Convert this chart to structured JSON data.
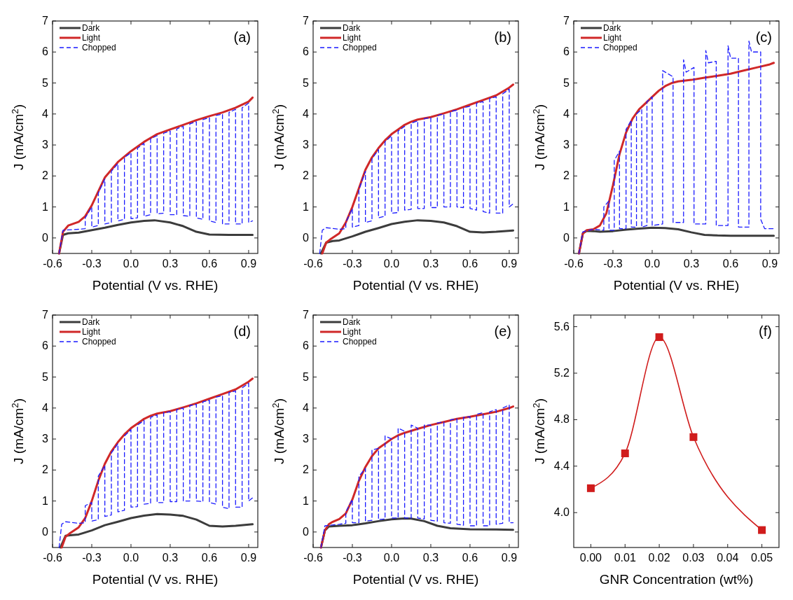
{
  "chart_data": [
    {
      "type": "line",
      "title": "(a)",
      "xlabel": "Potential (V vs. RHE)",
      "ylabel": "J (mA/cm$^{2}$)",
      "legend": "top left",
      "xlim": [
        -0.6,
        0.97
      ],
      "ylim": [
        -0.5,
        7
      ],
      "xticks": [
        -0.6,
        -0.3,
        {
          "value": 0,
          "label": "0.0"
        },
        0.3,
        0.6,
        0.9
      ],
      "yticks": [
        0,
        1,
        2,
        3,
        4,
        5,
        6,
        7
      ],
      "series": [
        {
          "name": "Dark",
          "color": "#3c3c3c",
          "x": [
            -0.55,
            -0.52,
            -0.48,
            -0.4,
            -0.3,
            -0.2,
            -0.1,
            0,
            0.1,
            0.18,
            0.3,
            0.4,
            0.5,
            0.6,
            0.75,
            0.93
          ],
          "values": [
            -0.5,
            0.1,
            0.15,
            0.17,
            0.25,
            0.33,
            0.42,
            0.5,
            0.55,
            0.57,
            0.5,
            0.38,
            0.2,
            0.11,
            0.1,
            0.1
          ]
        },
        {
          "name": "Light",
          "color": "#d02828",
          "x": [
            -0.55,
            -0.52,
            -0.48,
            -0.4,
            -0.35,
            -0.3,
            -0.25,
            -0.2,
            -0.1,
            0,
            0.1,
            0.2,
            0.3,
            0.4,
            0.5,
            0.6,
            0.7,
            0.8,
            0.9,
            0.93
          ],
          "values": [
            -0.5,
            0.2,
            0.4,
            0.52,
            0.7,
            1.05,
            1.5,
            1.95,
            2.45,
            2.8,
            3.1,
            3.35,
            3.5,
            3.65,
            3.8,
            3.93,
            4.05,
            4.2,
            4.4,
            4.53
          ]
        },
        {
          "name": "Chopped",
          "color": "#1a1aff",
          "line_style": "dashed",
          "x": [
            -0.55,
            -0.52,
            -0.4,
            -0.35,
            -0.35,
            -0.3,
            -0.3,
            -0.25,
            -0.25,
            -0.2,
            -0.2,
            -0.15,
            -0.15,
            -0.1,
            -0.1,
            -0.05,
            -0.05,
            0,
            0,
            0.05,
            0.05,
            0.1,
            0.1,
            0.15,
            0.15,
            0.2,
            0.2,
            0.25,
            0.25,
            0.3,
            0.3,
            0.35,
            0.35,
            0.4,
            0.4,
            0.45,
            0.45,
            0.5,
            0.5,
            0.55,
            0.55,
            0.6,
            0.6,
            0.65,
            0.65,
            0.7,
            0.7,
            0.75,
            0.75,
            0.8,
            0.8,
            0.85,
            0.85,
            0.9,
            0.9,
            0.93
          ],
          "values": [
            -0.5,
            0.25,
            0.28,
            0.3,
            0.65,
            1.0,
            0.35,
            0.4,
            1.45,
            1.9,
            0.45,
            0.5,
            2.15,
            2.4,
            0.55,
            0.6,
            2.6,
            2.75,
            0.62,
            0.65,
            2.9,
            3.05,
            0.7,
            0.75,
            3.2,
            3.3,
            0.78,
            0.8,
            3.38,
            3.45,
            0.75,
            0.75,
            3.52,
            3.6,
            0.72,
            0.7,
            3.68,
            3.75,
            0.65,
            0.6,
            3.82,
            3.88,
            0.55,
            0.5,
            3.95,
            4.0,
            0.45,
            0.45,
            4.05,
            4.15,
            0.45,
            0.45,
            4.2,
            4.35,
            0.5,
            0.55
          ]
        }
      ]
    },
    {
      "type": "line",
      "title": "(b)",
      "xlabel": "Potential (V vs. RHE)",
      "ylabel": "J (mA/cm$^{2}$)",
      "legend": "top left",
      "xlim": [
        -0.6,
        0.97
      ],
      "ylim": [
        -0.5,
        7
      ],
      "xticks": [
        -0.6,
        -0.3,
        {
          "value": 0,
          "label": "0.0"
        },
        0.3,
        0.6,
        0.9
      ],
      "yticks": [
        0,
        1,
        2,
        3,
        4,
        5,
        6,
        7
      ],
      "series": [
        {
          "name": "Dark",
          "color": "#3c3c3c",
          "x": [
            -0.54,
            -0.5,
            -0.45,
            -0.4,
            -0.3,
            -0.2,
            -0.1,
            0,
            0.1,
            0.2,
            0.3,
            0.4,
            0.5,
            0.6,
            0.7,
            0.8,
            0.93
          ],
          "values": [
            -0.5,
            -0.15,
            -0.1,
            -0.08,
            0.05,
            0.2,
            0.32,
            0.45,
            0.52,
            0.57,
            0.55,
            0.5,
            0.38,
            0.2,
            0.18,
            0.2,
            0.24
          ]
        },
        {
          "name": "Light",
          "color": "#d02828",
          "x": [
            -0.53,
            -0.5,
            -0.47,
            -0.4,
            -0.35,
            -0.3,
            -0.25,
            -0.2,
            -0.15,
            -0.1,
            -0.05,
            0,
            0.05,
            0.1,
            0.15,
            0.2,
            0.3,
            0.4,
            0.5,
            0.6,
            0.7,
            0.8,
            0.9,
            0.93
          ],
          "values": [
            -0.5,
            -0.15,
            -0.05,
            0.15,
            0.5,
            1.0,
            1.6,
            2.2,
            2.6,
            2.9,
            3.15,
            3.35,
            3.5,
            3.65,
            3.75,
            3.82,
            3.9,
            4.02,
            4.15,
            4.3,
            4.45,
            4.6,
            4.85,
            4.95
          ]
        },
        {
          "name": "Chopped",
          "color": "#1a1aff",
          "line_style": "dashed",
          "x": [
            -0.55,
            -0.53,
            -0.5,
            -0.4,
            -0.35,
            -0.35,
            -0.3,
            -0.3,
            -0.25,
            -0.25,
            -0.2,
            -0.2,
            -0.15,
            -0.15,
            -0.1,
            -0.1,
            -0.05,
            -0.05,
            0,
            0,
            0.05,
            0.05,
            0.1,
            0.1,
            0.15,
            0.15,
            0.2,
            0.2,
            0.25,
            0.25,
            0.3,
            0.3,
            0.35,
            0.35,
            0.4,
            0.4,
            0.45,
            0.45,
            0.5,
            0.5,
            0.55,
            0.55,
            0.6,
            0.6,
            0.65,
            0.65,
            0.7,
            0.7,
            0.75,
            0.75,
            0.8,
            0.8,
            0.85,
            0.85,
            0.9,
            0.9,
            0.93
          ],
          "values": [
            -0.5,
            0.25,
            0.33,
            0.28,
            0.3,
            0.5,
            0.95,
            0.35,
            0.4,
            1.55,
            2.15,
            0.5,
            0.55,
            2.55,
            2.85,
            0.65,
            0.7,
            3.1,
            3.3,
            0.8,
            0.82,
            3.45,
            3.6,
            0.9,
            0.92,
            3.7,
            3.78,
            0.95,
            0.95,
            3.85,
            3.88,
            0.98,
            0.98,
            3.95,
            4.0,
            1.0,
            1.0,
            4.08,
            4.12,
            1.0,
            0.98,
            4.2,
            4.25,
            0.95,
            0.9,
            4.35,
            4.4,
            0.85,
            0.8,
            4.5,
            4.55,
            0.8,
            0.8,
            4.65,
            4.8,
            1.0,
            1.1
          ]
        }
      ]
    },
    {
      "type": "line",
      "title": "(c)",
      "xlabel": "Potential (V vs. RHE)",
      "ylabel": "J (mA/cm$^{2}$)",
      "legend": "top left",
      "xlim": [
        -0.6,
        0.97
      ],
      "ylim": [
        -0.5,
        7
      ],
      "xticks": [
        -0.6,
        -0.3,
        {
          "value": 0,
          "label": "0.0"
        },
        0.3,
        0.6,
        0.9
      ],
      "yticks": [
        0,
        1,
        2,
        3,
        4,
        5,
        6,
        7
      ],
      "series": [
        {
          "name": "Dark",
          "color": "#3c3c3c",
          "x": [
            -0.56,
            -0.53,
            -0.5,
            -0.45,
            -0.4,
            -0.3,
            -0.2,
            -0.1,
            0,
            0.1,
            0.2,
            0.3,
            0.4,
            0.5,
            0.6,
            0.93
          ],
          "values": [
            -0.5,
            0.15,
            0.23,
            0.22,
            0.2,
            0.22,
            0.27,
            0.3,
            0.33,
            0.32,
            0.28,
            0.18,
            0.1,
            0.08,
            0.07,
            0.07
          ]
        },
        {
          "name": "Light",
          "color": "#d02828",
          "x": [
            -0.56,
            -0.53,
            -0.5,
            -0.45,
            -0.4,
            -0.35,
            -0.3,
            -0.25,
            -0.2,
            -0.15,
            -0.1,
            -0.05,
            0,
            0.05,
            0.1,
            0.15,
            0.2,
            0.3,
            0.4,
            0.5,
            0.6,
            0.7,
            0.8,
            0.9,
            0.93
          ],
          "values": [
            -0.5,
            0.15,
            0.25,
            0.28,
            0.4,
            0.8,
            1.7,
            2.7,
            3.4,
            3.85,
            4.15,
            4.35,
            4.55,
            4.75,
            4.9,
            5.0,
            5.05,
            5.1,
            5.17,
            5.23,
            5.3,
            5.4,
            5.5,
            5.6,
            5.65
          ]
        },
        {
          "name": "Chopped",
          "color": "#1a1aff",
          "line_style": "dashed",
          "x": [
            -0.56,
            -0.53,
            -0.45,
            -0.37,
            -0.37,
            -0.33,
            -0.33,
            -0.29,
            -0.29,
            -0.25,
            -0.25,
            -0.2,
            -0.2,
            -0.16,
            -0.16,
            -0.12,
            -0.12,
            -0.08,
            -0.08,
            -0.04,
            -0.04,
            0,
            0,
            0.08,
            0.08,
            0.16,
            0.16,
            0.24,
            0.24,
            0.26,
            0.32,
            0.32,
            0.41,
            0.41,
            0.43,
            0.49,
            0.49,
            0.58,
            0.58,
            0.6,
            0.66,
            0.66,
            0.74,
            0.74,
            0.76,
            0.83,
            0.83,
            0.86,
            0.93
          ],
          "values": [
            -0.5,
            0.2,
            0.28,
            0.25,
            1.0,
            1.2,
            0.25,
            0.25,
            2.5,
            2.8,
            0.3,
            0.3,
            3.5,
            3.8,
            0.35,
            0.35,
            4.0,
            4.15,
            0.35,
            0.4,
            4.4,
            4.55,
            0.4,
            0.45,
            5.4,
            5.2,
            0.5,
            0.5,
            5.75,
            5.35,
            5.5,
            0.45,
            0.45,
            6.05,
            5.65,
            5.7,
            0.4,
            0.4,
            6.2,
            5.8,
            5.8,
            0.35,
            0.35,
            6.35,
            6.0,
            6.0,
            0.6,
            0.3,
            0.3
          ]
        }
      ]
    },
    {
      "type": "line",
      "title": "(d)",
      "xlabel": "Potential (V vs. RHE)",
      "ylabel": "J (mA/cm$^{2}$)",
      "legend": "top left",
      "xlim": [
        -0.6,
        0.97
      ],
      "ylim": [
        -0.5,
        7
      ],
      "xticks": [
        -0.6,
        -0.3,
        {
          "value": 0,
          "label": "0.0"
        },
        0.3,
        0.6,
        0.9
      ],
      "yticks": [
        0,
        1,
        2,
        3,
        4,
        5,
        6,
        7
      ],
      "series": [
        {
          "name": "Dark",
          "color": "#3c3c3c",
          "x": [
            -0.54,
            -0.5,
            -0.45,
            -0.4,
            -0.3,
            -0.2,
            -0.1,
            0,
            0.1,
            0.2,
            0.3,
            0.4,
            0.5,
            0.6,
            0.7,
            0.8,
            0.93
          ],
          "values": [
            -0.5,
            -0.12,
            -0.1,
            -0.08,
            0.05,
            0.22,
            0.33,
            0.45,
            0.53,
            0.58,
            0.56,
            0.52,
            0.4,
            0.2,
            0.18,
            0.2,
            0.25
          ]
        },
        {
          "name": "Light",
          "color": "#d02828",
          "x": [
            -0.53,
            -0.5,
            -0.47,
            -0.4,
            -0.35,
            -0.3,
            -0.25,
            -0.2,
            -0.15,
            -0.1,
            -0.05,
            0,
            0.05,
            0.1,
            0.15,
            0.2,
            0.3,
            0.4,
            0.5,
            0.6,
            0.7,
            0.8,
            0.9,
            0.93
          ],
          "values": [
            -0.5,
            -0.15,
            -0.05,
            0.15,
            0.45,
            1.0,
            1.65,
            2.2,
            2.6,
            2.9,
            3.15,
            3.35,
            3.5,
            3.65,
            3.75,
            3.82,
            3.9,
            4.02,
            4.15,
            4.3,
            4.45,
            4.6,
            4.85,
            4.95
          ]
        },
        {
          "name": "Chopped",
          "color": "#1a1aff",
          "line_style": "dashed",
          "x": [
            -0.55,
            -0.53,
            -0.5,
            -0.4,
            -0.35,
            -0.35,
            -0.3,
            -0.3,
            -0.25,
            -0.25,
            -0.2,
            -0.2,
            -0.15,
            -0.15,
            -0.1,
            -0.1,
            -0.05,
            -0.05,
            0,
            0,
            0.05,
            0.05,
            0.1,
            0.1,
            0.15,
            0.15,
            0.2,
            0.2,
            0.25,
            0.25,
            0.3,
            0.3,
            0.35,
            0.35,
            0.4,
            0.4,
            0.45,
            0.45,
            0.5,
            0.5,
            0.55,
            0.55,
            0.6,
            0.6,
            0.65,
            0.65,
            0.7,
            0.7,
            0.75,
            0.75,
            0.8,
            0.8,
            0.85,
            0.85,
            0.9,
            0.9,
            0.93
          ],
          "values": [
            -0.5,
            0.25,
            0.33,
            0.28,
            0.3,
            0.85,
            0.95,
            0.35,
            0.4,
            1.8,
            2.15,
            0.5,
            0.55,
            2.55,
            2.85,
            0.65,
            0.7,
            3.1,
            3.3,
            0.8,
            0.82,
            3.45,
            3.6,
            0.9,
            0.92,
            3.7,
            3.78,
            0.95,
            0.95,
            3.85,
            3.88,
            0.98,
            0.98,
            3.95,
            4.0,
            1.0,
            1.0,
            4.08,
            4.12,
            1.0,
            0.98,
            4.2,
            4.25,
            0.95,
            0.9,
            4.35,
            4.4,
            0.8,
            0.75,
            4.5,
            4.55,
            0.8,
            0.8,
            4.65,
            4.8,
            1.0,
            1.1
          ]
        }
      ]
    },
    {
      "type": "line",
      "title": "(e)",
      "xlabel": "Potential (V vs. RHE)",
      "ylabel": "J (mA/cm$^{2}$)",
      "legend": "top left",
      "xlim": [
        -0.6,
        0.97
      ],
      "ylim": [
        -0.5,
        7
      ],
      "xticks": [
        -0.6,
        -0.3,
        {
          "value": 0,
          "label": "0.0"
        },
        0.3,
        0.6,
        0.9
      ],
      "yticks": [
        0,
        1,
        2,
        3,
        4,
        5,
        6,
        7
      ],
      "series": [
        {
          "name": "Dark",
          "color": "#3c3c3c",
          "x": [
            -0.54,
            -0.51,
            -0.48,
            -0.4,
            -0.3,
            -0.2,
            -0.1,
            0,
            0.1,
            0.15,
            0.25,
            0.35,
            0.45,
            0.6,
            0.8,
            0.93
          ],
          "values": [
            -0.5,
            0.05,
            0.18,
            0.2,
            0.22,
            0.28,
            0.35,
            0.41,
            0.44,
            0.43,
            0.35,
            0.2,
            0.12,
            0.09,
            0.08,
            0.07
          ]
        },
        {
          "name": "Light",
          "color": "#d02828",
          "x": [
            -0.54,
            -0.51,
            -0.48,
            -0.45,
            -0.4,
            -0.35,
            -0.3,
            -0.25,
            -0.2,
            -0.15,
            -0.1,
            -0.05,
            0,
            0.05,
            0.1,
            0.2,
            0.3,
            0.4,
            0.5,
            0.6,
            0.7,
            0.8,
            0.9,
            0.93
          ],
          "values": [
            -0.5,
            0.05,
            0.25,
            0.33,
            0.42,
            0.6,
            1.05,
            1.65,
            2.1,
            2.45,
            2.7,
            2.85,
            3.0,
            3.12,
            3.2,
            3.33,
            3.45,
            3.55,
            3.65,
            3.72,
            3.8,
            3.88,
            4.0,
            4.05
          ]
        },
        {
          "name": "Chopped",
          "color": "#1a1aff",
          "line_style": "dashed",
          "x": [
            -0.54,
            -0.51,
            -0.4,
            -0.35,
            -0.35,
            -0.3,
            -0.3,
            -0.25,
            -0.25,
            -0.2,
            -0.2,
            -0.15,
            -0.15,
            -0.1,
            -0.1,
            -0.05,
            -0.05,
            0,
            0,
            0.05,
            0.05,
            0.1,
            0.1,
            0.15,
            0.15,
            0.2,
            0.2,
            0.25,
            0.25,
            0.3,
            0.3,
            0.35,
            0.35,
            0.4,
            0.4,
            0.45,
            0.45,
            0.5,
            0.5,
            0.55,
            0.55,
            0.6,
            0.6,
            0.65,
            0.65,
            0.7,
            0.7,
            0.75,
            0.75,
            0.8,
            0.8,
            0.85,
            0.85,
            0.9,
            0.9,
            0.93
          ],
          "values": [
            -0.5,
            0.2,
            0.25,
            0.28,
            0.65,
            1.05,
            0.3,
            0.3,
            1.8,
            2.05,
            0.35,
            0.38,
            2.65,
            2.7,
            0.4,
            0.42,
            3.1,
            3.0,
            0.45,
            0.45,
            3.35,
            3.25,
            0.45,
            0.45,
            3.45,
            3.35,
            0.45,
            0.42,
            3.45,
            3.45,
            0.38,
            0.35,
            3.52,
            3.55,
            0.3,
            0.28,
            3.62,
            3.65,
            0.25,
            0.22,
            3.7,
            3.72,
            0.2,
            0.2,
            3.8,
            3.85,
            0.2,
            0.2,
            3.88,
            3.95,
            0.25,
            0.28,
            4.0,
            4.1,
            0.3,
            0.3
          ]
        }
      ]
    },
    {
      "type": "line",
      "title": "(f)",
      "xlabel": "GNR Concentration (wt%)",
      "ylabel": "J (mA/cm$^{2}$)",
      "legend": false,
      "marker": "square",
      "xlim": [
        -0.005,
        0.055
      ],
      "ylim": [
        3.7,
        5.7
      ],
      "xticks": [
        {
          "value": 0,
          "label": "0.00"
        },
        {
          "value": 0.01,
          "label": "0.01"
        },
        {
          "value": 0.02,
          "label": "0.02"
        },
        {
          "value": 0.03,
          "label": "0.03"
        },
        {
          "value": 0.04,
          "label": "0.04"
        },
        {
          "value": 0.05,
          "label": "0.05"
        }
      ],
      "yticks": [
        {
          "value": 4,
          "label": "4.0"
        },
        4.4,
        4.8,
        5.2,
        5.6
      ],
      "series": [
        {
          "color": "#d01c1c",
          "x": [
            0,
            0.01,
            0.02,
            0.03,
            0.05
          ],
          "values": [
            4.21,
            4.51,
            5.51,
            4.65,
            3.85
          ]
        }
      ]
    }
  ]
}
